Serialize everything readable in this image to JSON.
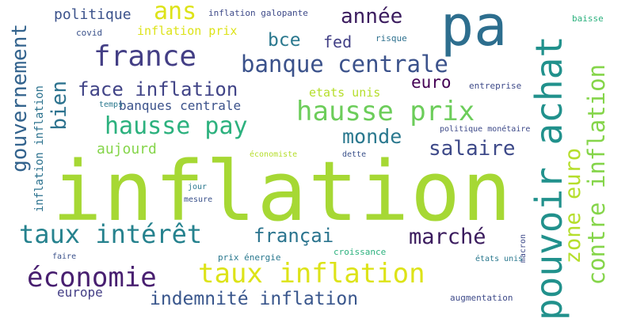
{
  "words": {
    "inflation": "inflation",
    "pa": "pa",
    "pouvoir_achat": "pouvoir achat",
    "france": "france",
    "banque_centrale": "banque centrale",
    "hausse_prix": "hausse prix",
    "hausse_pay": "hausse pay",
    "face_inflation": "face inflation",
    "taux_interet": "taux intérêt",
    "taux_inflation": "taux inflation",
    "economie": "économie",
    "indemnite_inflation": "indemnité inflation",
    "zone_euro": "zone euro",
    "contre_inflation": "contre inflation",
    "gouvernement": "gouvernement",
    "ans": "ans",
    "annee": "année",
    "bce": "bce",
    "fed": "fed",
    "bien": "bien",
    "euro": "euro",
    "monde": "monde",
    "salaire": "salaire",
    "marche": "marché",
    "francai": "françai",
    "politique": "politique",
    "inflation_galopante": "inflation galopante",
    "inflation_prix": "inflation prix",
    "covid": "covid",
    "risque": "risque",
    "baisse": "baisse",
    "inflation_inflation": "inflation inflation",
    "banques_centrale": "banques centrale",
    "etats_unis": "etats unis",
    "entreprise": "entreprise",
    "temps": "temps",
    "aujourd": "aujourd",
    "economiste": "économiste",
    "dette": "dette",
    "politique_monetaire": "politique monétaire",
    "jour": "jour",
    "mesure": "mesure",
    "faire": "faire",
    "prix_energie": "prix énergie",
    "croissance": "croissance",
    "macron": "macron",
    "etats_unis_accent": "états unis",
    "europe": "europe",
    "augmentation": "augmentation"
  }
}
